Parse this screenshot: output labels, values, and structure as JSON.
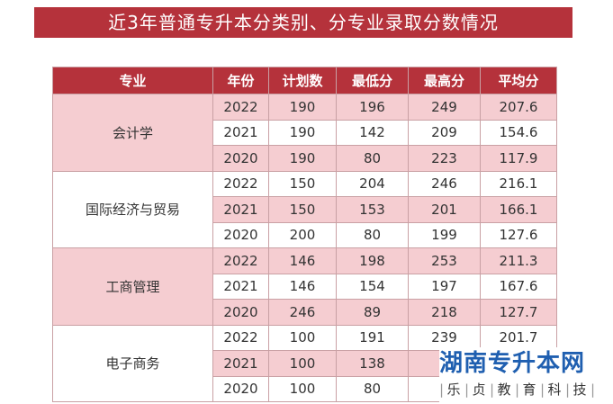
{
  "banner": {
    "title": "近3年普通专升本分类别、分专业录取分数情况"
  },
  "table": {
    "headers": [
      "专业",
      "年份",
      "计划数",
      "最低分",
      "最高分",
      "平均分"
    ],
    "groups": [
      {
        "major": "会计学",
        "rows": [
          [
            "2022",
            "190",
            "196",
            "249",
            "207.6"
          ],
          [
            "2021",
            "190",
            "142",
            "209",
            "154.6"
          ],
          [
            "2020",
            "190",
            "80",
            "223",
            "117.9"
          ]
        ]
      },
      {
        "major": "国际经济与贸易",
        "rows": [
          [
            "2022",
            "150",
            "204",
            "246",
            "216.1"
          ],
          [
            "2021",
            "150",
            "153",
            "201",
            "166.1"
          ],
          [
            "2020",
            "200",
            "80",
            "199",
            "127.6"
          ]
        ]
      },
      {
        "major": "工商管理",
        "rows": [
          [
            "2022",
            "146",
            "198",
            "253",
            "211.3"
          ],
          [
            "2021",
            "146",
            "154",
            "197",
            "167.6"
          ],
          [
            "2020",
            "246",
            "89",
            "218",
            "127.7"
          ]
        ]
      },
      {
        "major": "电子商务",
        "rows": [
          [
            "2022",
            "100",
            "191",
            "239",
            "201.7"
          ],
          [
            "2021",
            "100",
            "138",
            "",
            ""
          ],
          [
            "2020",
            "100",
            "80",
            "",
            ""
          ]
        ]
      }
    ]
  },
  "watermark": {
    "title": "湖南专升本网",
    "subtitle_chars": [
      "乐",
      "贞",
      "教",
      "育",
      "科",
      "技"
    ]
  },
  "colors": {
    "accent": "#b5323b",
    "row_pink": "#f5cdd1",
    "watermark_blue": "#1f5fb0"
  }
}
